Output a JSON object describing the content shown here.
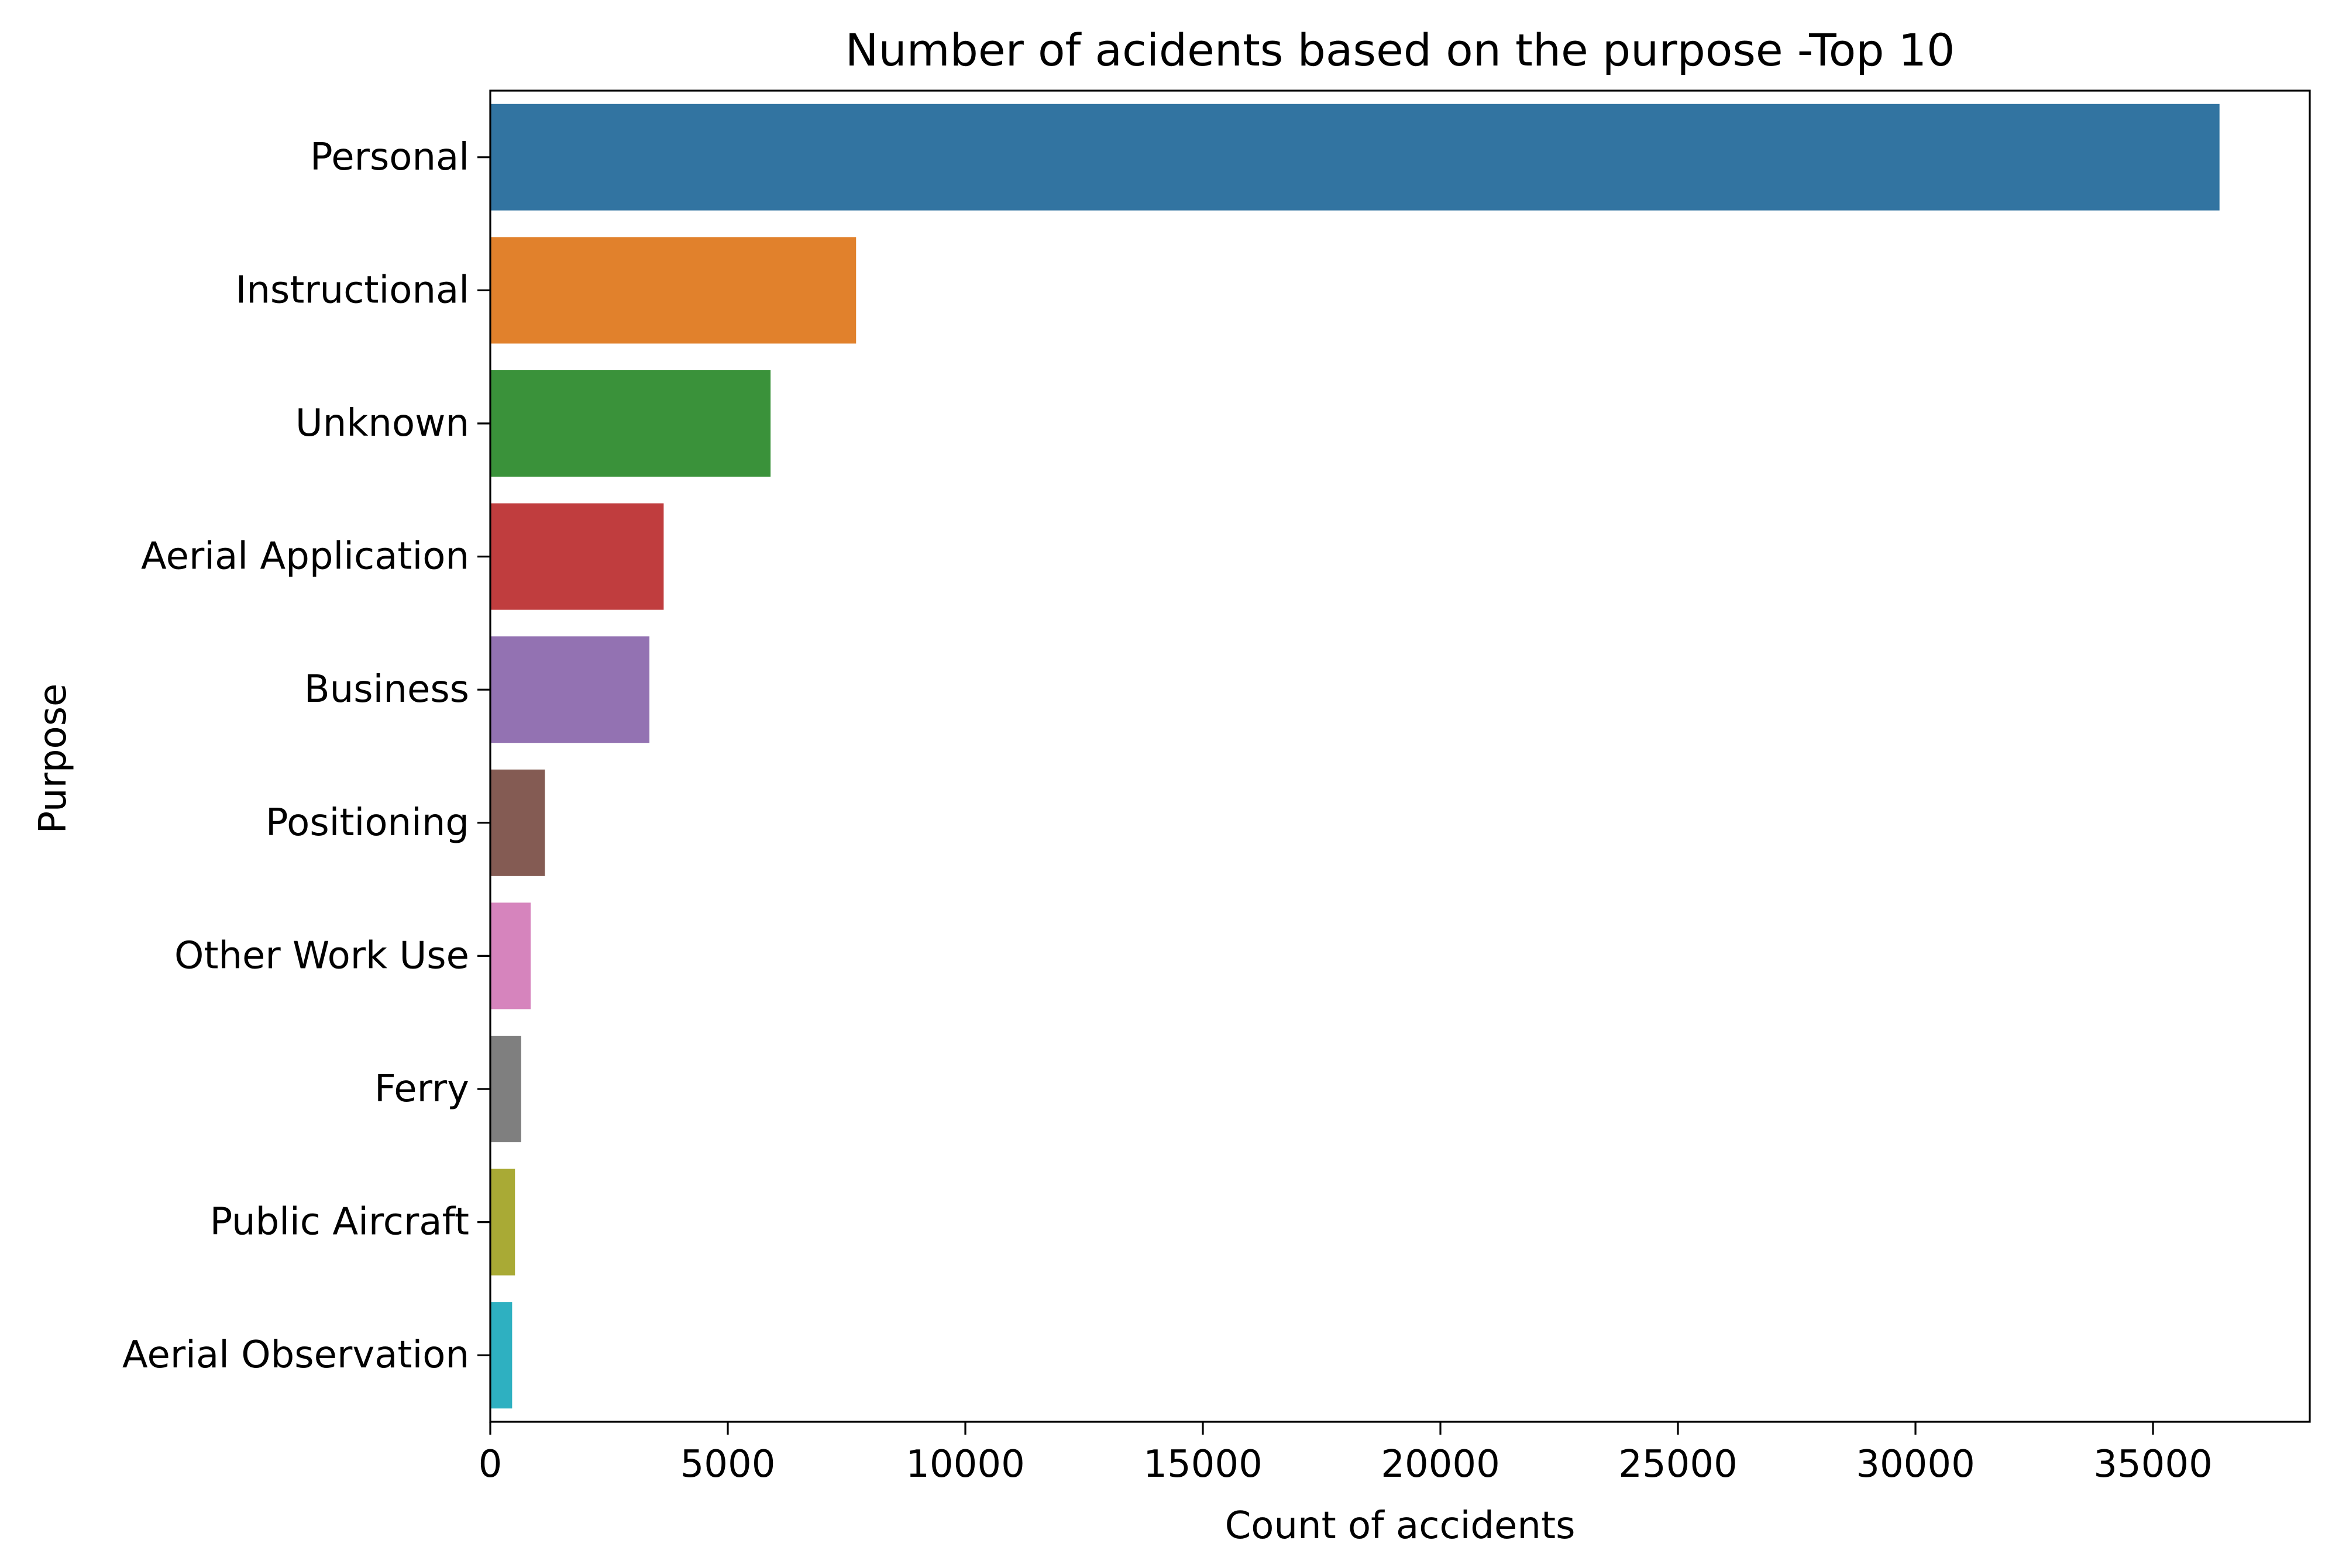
{
  "chart_data": {
    "type": "bar",
    "orientation": "horizontal",
    "title": "Number of acidents based on the purpose -Top 10",
    "xlabel": "Count of accidents",
    "ylabel": "Purpose",
    "xlim": [
      0,
      38300
    ],
    "xticks": [
      0,
      5000,
      10000,
      15000,
      20000,
      25000,
      30000,
      35000
    ],
    "grid": false,
    "categories": [
      "Personal",
      "Instructional",
      "Unknown",
      "Aerial Application",
      "Business",
      "Positioning",
      "Other Work Use",
      "Ferry",
      "Public Aircraft",
      "Aerial Observation"
    ],
    "values": [
      36400,
      7700,
      5900,
      3650,
      3350,
      1150,
      850,
      650,
      520,
      460
    ],
    "colors": [
      "#3274a1",
      "#e1812c",
      "#3a923a",
      "#c03d3e",
      "#9372b2",
      "#845b53",
      "#d684bd",
      "#7f7f7f",
      "#a9aa35",
      "#2eb0c1"
    ]
  }
}
